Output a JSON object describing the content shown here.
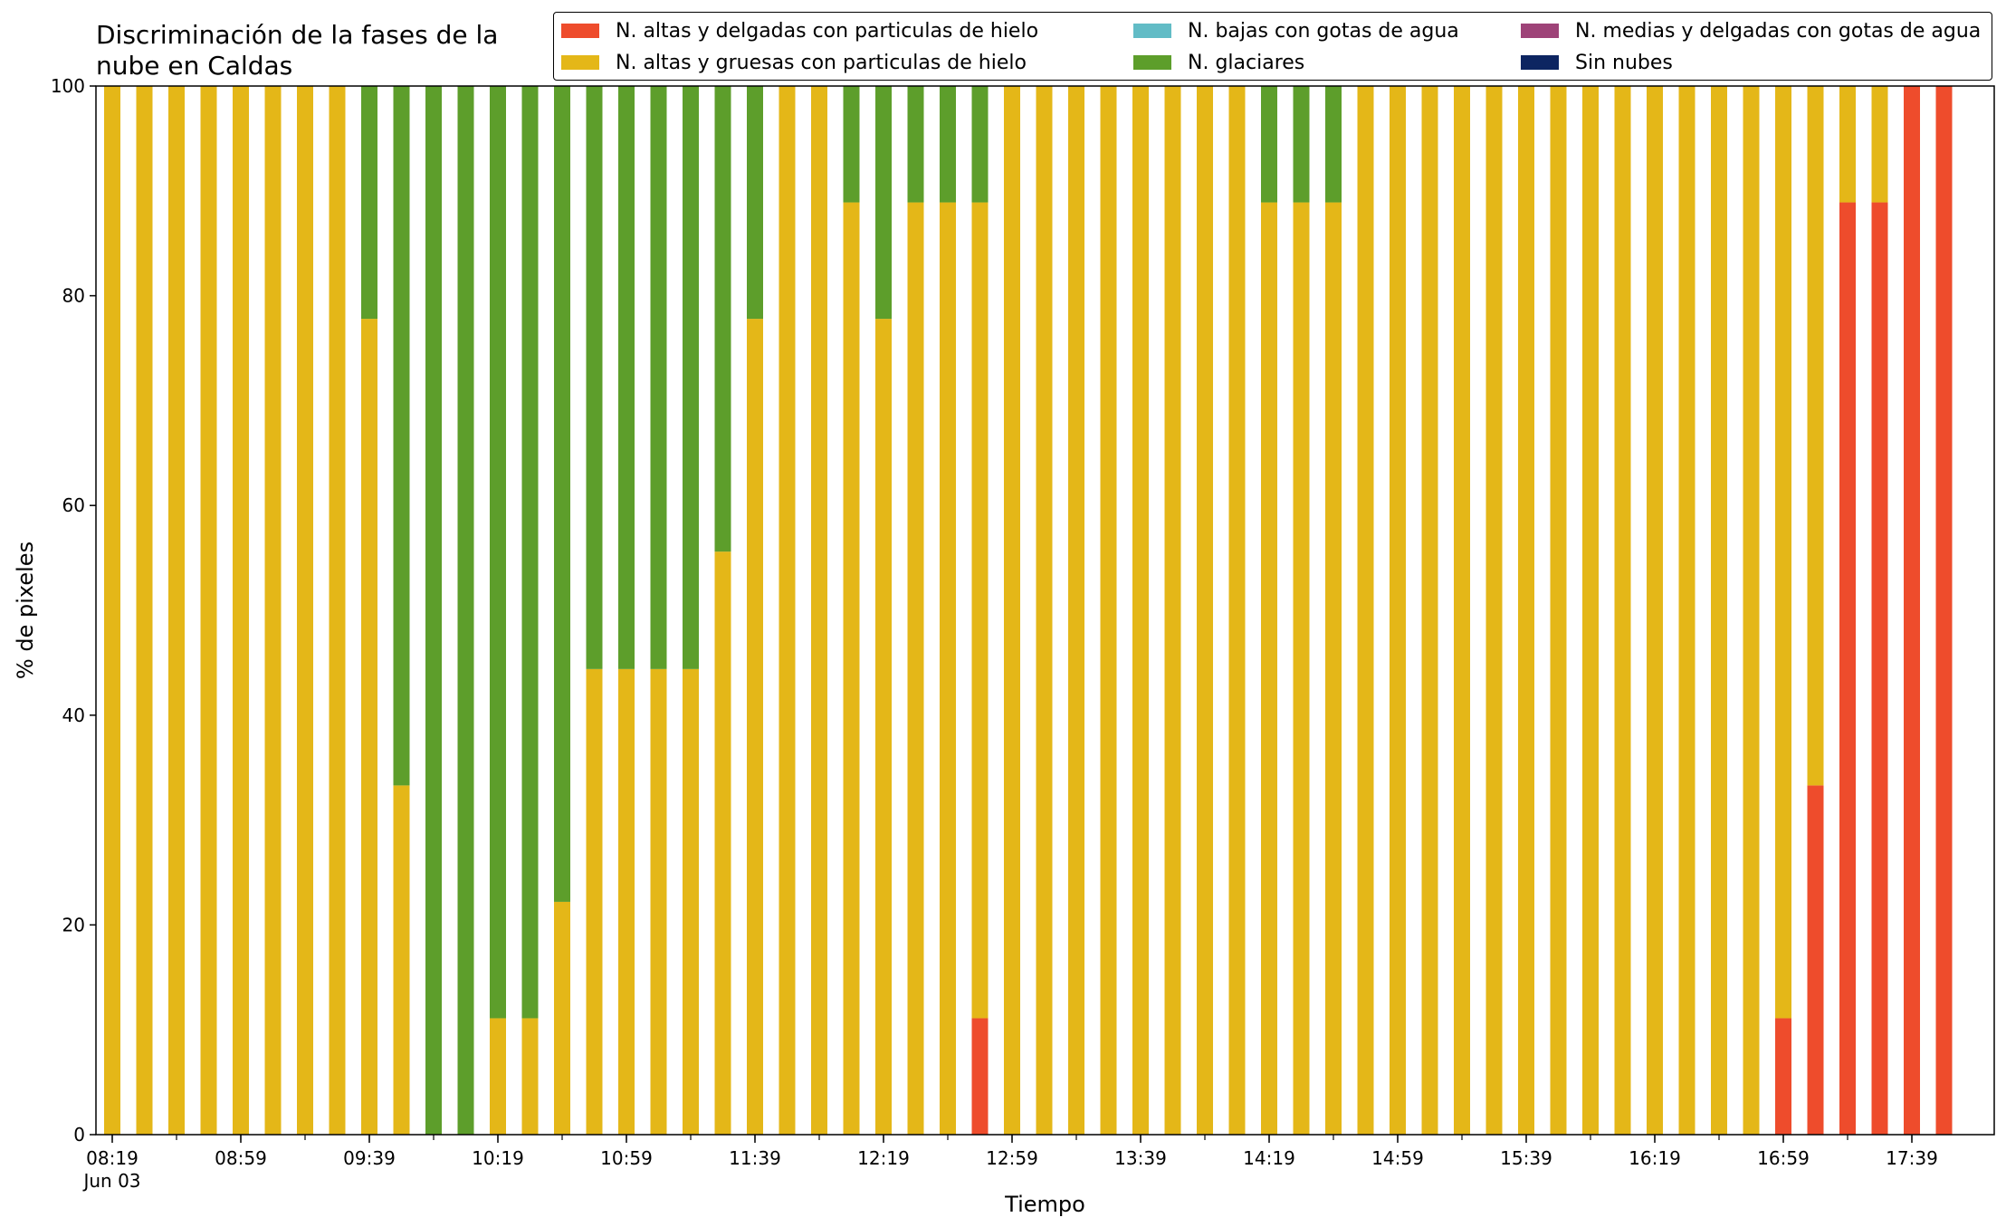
{
  "chart_data": {
    "type": "bar",
    "stacked": true,
    "title": "Discriminación de la fases de la nube en Caldas",
    "title_lines": [
      "Discriminación de la fases de la",
      "nube en Caldas"
    ],
    "xlabel": "Tiempo",
    "ylabel": "% de pixeles",
    "ylim": [
      0,
      100
    ],
    "yticks": [
      "0",
      "20",
      "40",
      "60",
      "80",
      "100"
    ],
    "x_tick_labels": [
      "08:19",
      "08:59",
      "09:39",
      "10:19",
      "10:59",
      "11:39",
      "12:19",
      "12:59",
      "13:39",
      "14:19",
      "14:59",
      "15:39",
      "16:19",
      "16:59",
      "17:39"
    ],
    "x_date_label": "Jun 03",
    "grid": false,
    "legend_position": "top-right",
    "times": [
      "08:19",
      "08:29",
      "08:39",
      "08:49",
      "08:59",
      "09:09",
      "09:19",
      "09:29",
      "09:39",
      "09:49",
      "09:59",
      "10:09",
      "10:19",
      "10:29",
      "10:39",
      "10:49",
      "10:59",
      "11:09",
      "11:19",
      "11:29",
      "11:39",
      "11:49",
      "11:59",
      "12:09",
      "12:19",
      "12:29",
      "12:39",
      "12:49",
      "12:59",
      "13:09",
      "13:19",
      "13:29",
      "13:39",
      "13:49",
      "13:59",
      "14:09",
      "14:19",
      "14:29",
      "14:39",
      "14:49",
      "14:59",
      "15:09",
      "15:19",
      "15:29",
      "15:39",
      "15:49",
      "15:59",
      "16:09",
      "16:19",
      "16:29",
      "16:39",
      "16:49",
      "16:59",
      "17:09",
      "17:19",
      "17:29",
      "17:39",
      "17:49"
    ],
    "series": [
      {
        "name": "N. altas y delgadas con particulas de hielo",
        "color": "#ee4c2c",
        "values": [
          0,
          0,
          0,
          0,
          0,
          0,
          0,
          0,
          0,
          0,
          0,
          0,
          0,
          0,
          0,
          0,
          0,
          0,
          0,
          0,
          0,
          0,
          0,
          0,
          0,
          0,
          0,
          11.1,
          0,
          0,
          0,
          0,
          0,
          0,
          0,
          0,
          0,
          0,
          0,
          0,
          0,
          0,
          0,
          0,
          0,
          0,
          0,
          0,
          0,
          0,
          0,
          0,
          11.1,
          33.3,
          88.9,
          88.9,
          100,
          100
        ]
      },
      {
        "name": "N. altas y gruesas con particulas de hielo",
        "color": "#e4b718",
        "values": [
          100,
          100,
          100,
          100,
          100,
          100,
          100,
          100,
          77.8,
          33.3,
          0,
          0,
          11.1,
          11.1,
          22.2,
          44.4,
          44.4,
          44.4,
          44.4,
          55.6,
          77.8,
          100,
          100,
          88.9,
          77.8,
          88.9,
          88.9,
          77.8,
          100,
          100,
          100,
          100,
          100,
          100,
          100,
          100,
          88.9,
          88.9,
          88.9,
          100,
          100,
          100,
          100,
          100,
          100,
          100,
          100,
          100,
          100,
          100,
          100,
          100,
          88.9,
          66.7,
          11.1,
          11.1,
          0,
          0
        ]
      },
      {
        "name": "N. bajas con gotas de agua",
        "color": "#62bcc6",
        "values": [
          0,
          0,
          0,
          0,
          0,
          0,
          0,
          0,
          0,
          0,
          0,
          0,
          0,
          0,
          0,
          0,
          0,
          0,
          0,
          0,
          0,
          0,
          0,
          0,
          0,
          0,
          0,
          0,
          0,
          0,
          0,
          0,
          0,
          0,
          0,
          0,
          0,
          0,
          0,
          0,
          0,
          0,
          0,
          0,
          0,
          0,
          0,
          0,
          0,
          0,
          0,
          0,
          0,
          0,
          0,
          0,
          0,
          0
        ]
      },
      {
        "name": "N. glaciares",
        "color": "#5d9e2b",
        "values": [
          0,
          0,
          0,
          0,
          0,
          0,
          0,
          0,
          22.2,
          66.7,
          100,
          100,
          88.9,
          88.9,
          77.8,
          55.6,
          55.6,
          55.6,
          55.6,
          44.4,
          22.2,
          0,
          0,
          11.1,
          22.2,
          11.1,
          11.1,
          11.1,
          0,
          0,
          0,
          0,
          0,
          0,
          0,
          0,
          11.1,
          11.1,
          11.1,
          0,
          0,
          0,
          0,
          0,
          0,
          0,
          0,
          0,
          0,
          0,
          0,
          0,
          0,
          0,
          0,
          0,
          0,
          0
        ]
      },
      {
        "name": "N. medias y delgadas con gotas de agua",
        "color": "#9e4378",
        "values": [
          0,
          0,
          0,
          0,
          0,
          0,
          0,
          0,
          0,
          0,
          0,
          0,
          0,
          0,
          0,
          0,
          0,
          0,
          0,
          0,
          0,
          0,
          0,
          0,
          0,
          0,
          0,
          0,
          0,
          0,
          0,
          0,
          0,
          0,
          0,
          0,
          0,
          0,
          0,
          0,
          0,
          0,
          0,
          0,
          0,
          0,
          0,
          0,
          0,
          0,
          0,
          0,
          0,
          0,
          0,
          0,
          0,
          0
        ]
      },
      {
        "name": "Sin nubes",
        "color": "#0d2561",
        "values": [
          0,
          0,
          0,
          0,
          0,
          0,
          0,
          0,
          0,
          0,
          0,
          0,
          0,
          0,
          0,
          0,
          0,
          0,
          0,
          0,
          0,
          0,
          0,
          0,
          0,
          0,
          0,
          0,
          0,
          0,
          0,
          0,
          0,
          0,
          0,
          0,
          0,
          0,
          0,
          0,
          0,
          0,
          0,
          0,
          0,
          0,
          0,
          0,
          0,
          0,
          0,
          0,
          0,
          0,
          0,
          0,
          0,
          0
        ]
      }
    ]
  }
}
